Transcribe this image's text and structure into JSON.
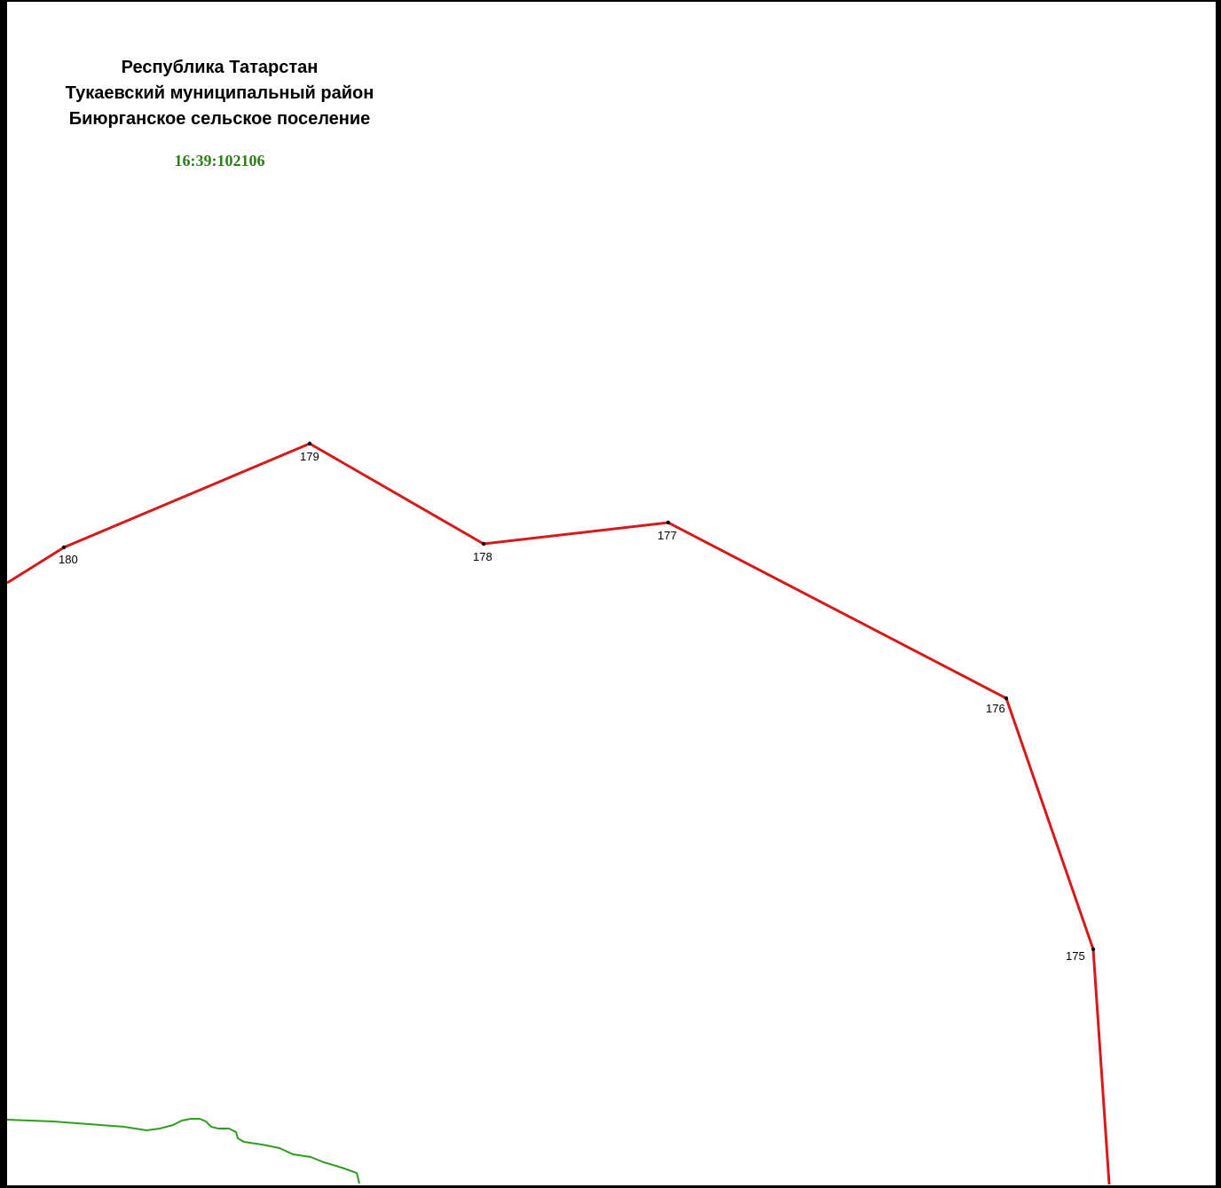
{
  "header": {
    "lines": [
      "Республика Татарстан",
      "Тукаевский муниципальный район",
      "Биюрганское сельское поселение"
    ],
    "cadastral_number": "16:39:102106"
  },
  "boundary": {
    "color": "#d61a1a",
    "point_color": "#000000",
    "points": [
      {
        "label": "180"
      },
      {
        "label": "179"
      },
      {
        "label": "178"
      },
      {
        "label": "177"
      },
      {
        "label": "176"
      },
      {
        "label": "175"
      }
    ]
  },
  "water_line": {
    "color": "#2e9e1f"
  }
}
